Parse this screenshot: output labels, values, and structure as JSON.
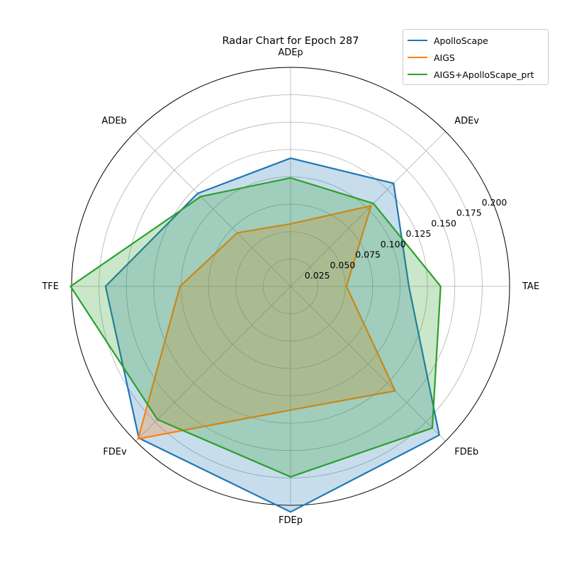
{
  "chart_data": {
    "type": "radar",
    "title": "Radar Chart for Epoch 287",
    "axes": [
      "ADEp",
      "ADEv",
      "TAE",
      "FDEb",
      "FDEp",
      "FDEv",
      "TFE",
      "ADEb"
    ],
    "rlim": [
      0,
      0.2
    ],
    "rticks": [
      "0.025",
      "0.050",
      "0.075",
      "0.100",
      "0.125",
      "0.150",
      "0.175",
      "0.200"
    ],
    "grid": true,
    "legend_position": "upper-right",
    "series": [
      {
        "name": "ApolloScape",
        "color": "#1f77b4",
        "values": [
          0.117,
          0.133,
          0.108,
          0.192,
          0.206,
          0.196,
          0.169,
          0.12
        ]
      },
      {
        "name": "AIGS",
        "color": "#ff7f0e",
        "values": [
          0.057,
          0.104,
          0.051,
          0.135,
          0.113,
          0.197,
          0.101,
          0.069
        ]
      },
      {
        "name": "AIGS+ApolloScape_prt",
        "color": "#2ca02c",
        "values": [
          0.099,
          0.107,
          0.137,
          0.183,
          0.174,
          0.172,
          0.201,
          0.116
        ]
      }
    ]
  }
}
